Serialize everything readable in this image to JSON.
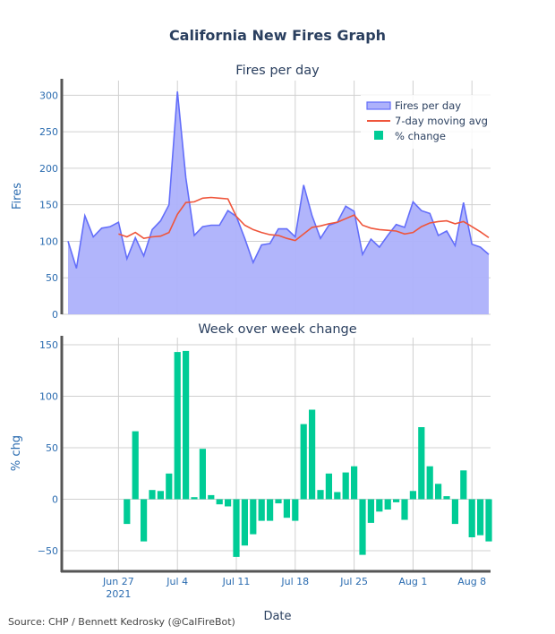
{
  "title": "California New Fires Graph",
  "source": "Source: CHP / Bennett Kedrosky (@CalFireBot)",
  "xlabel": "Date",
  "colors": {
    "fires_line": "#636efa",
    "fires_fill": "#adb1fb",
    "moving_avg": "#ef553b",
    "pct_change": "#00cc96",
    "grid": "#d0d0d0",
    "axis": "#555555",
    "text": "#2a3f5f",
    "tick": "#2b6cb0"
  },
  "x_ticks": [
    {
      "label": "Jun 27",
      "sublabel": "2021",
      "day": 6
    },
    {
      "label": "Jul 4",
      "sublabel": "",
      "day": 13
    },
    {
      "label": "Jul 11",
      "sublabel": "",
      "day": 20
    },
    {
      "label": "Jul 18",
      "sublabel": "",
      "day": 27
    },
    {
      "label": "Jul 25",
      "sublabel": "",
      "day": 34
    },
    {
      "label": "Aug 1",
      "sublabel": "",
      "day": 41
    },
    {
      "label": "Aug 8",
      "sublabel": "",
      "day": 48
    }
  ],
  "chart_data": [
    {
      "type": "area",
      "title": "Fires per day",
      "ylabel": "Fires",
      "ylim": [
        0,
        320
      ],
      "yticks": [
        0,
        50,
        100,
        150,
        200,
        250,
        300
      ],
      "x_start": "2021-06-21",
      "x_end": "2021-08-11",
      "legend_position": "top-right",
      "grid": true,
      "series": [
        {
          "name": "Fires per day",
          "type": "area",
          "values": [
            100,
            63,
            135,
            106,
            118,
            120,
            126,
            76,
            105,
            80,
            116,
            128,
            150,
            305,
            187,
            108,
            120,
            122,
            122,
            142,
            134,
            104,
            71,
            95,
            97,
            117,
            117,
            106,
            177,
            135,
            104,
            122,
            126,
            148,
            141,
            82,
            103,
            92,
            108,
            123,
            119,
            154,
            142,
            138,
            108,
            114,
            94,
            153,
            96,
            92,
            82
          ]
        },
        {
          "name": "7-day moving avg",
          "type": "line",
          "start_index": 6,
          "values": [
            110,
            106,
            112,
            104,
            106,
            107,
            112,
            137,
            153,
            154,
            159,
            160,
            159,
            158,
            134,
            122,
            116,
            112,
            109,
            108,
            104,
            101,
            110,
            119,
            121,
            124,
            126,
            131,
            136,
            122,
            118,
            116,
            115,
            114,
            110,
            112,
            120,
            125,
            127,
            128,
            124,
            127,
            120,
            113,
            105
          ]
        }
      ]
    },
    {
      "type": "bar",
      "title": "Week over week change",
      "ylabel": "% chg",
      "xlabel": "Date",
      "ylim": [
        -70,
        157
      ],
      "yticks": [
        -50,
        0,
        50,
        100,
        150
      ],
      "grid": true,
      "series": [
        {
          "name": "% change",
          "start_index": 7,
          "values": [
            -24,
            66,
            -41,
            9,
            8,
            25,
            143,
            144,
            2,
            49,
            4,
            -5,
            -7,
            -56,
            -45,
            -34,
            -21,
            -21,
            -4,
            -18,
            -21,
            73,
            87,
            9,
            25,
            7,
            26,
            32,
            -54,
            -23,
            -12,
            -10,
            -3,
            -20,
            8,
            70,
            32,
            15,
            3,
            -24,
            28,
            -37,
            -35,
            -41
          ]
        }
      ]
    }
  ]
}
